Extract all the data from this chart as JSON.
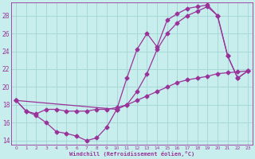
{
  "xlabel": "Windchill (Refroidissement éolien,°C)",
  "ylabel": "",
  "xlim": [
    -0.5,
    23.5
  ],
  "ylim": [
    13.5,
    29.5
  ],
  "xticks": [
    0,
    1,
    2,
    3,
    4,
    5,
    6,
    7,
    8,
    9,
    10,
    11,
    12,
    13,
    14,
    15,
    16,
    17,
    18,
    19,
    20,
    21,
    22,
    23
  ],
  "yticks": [
    14,
    16,
    18,
    20,
    22,
    24,
    26,
    28
  ],
  "background_color": "#c8eded",
  "grid_color": "#a8d8d8",
  "line_color": "#993399",
  "line1_x": [
    0,
    1,
    2,
    3,
    4,
    5,
    6,
    7,
    8,
    9,
    10
  ],
  "line1_y": [
    18.5,
    17.3,
    16.8,
    16.0,
    15.0,
    14.8,
    14.5,
    14.0,
    14.3,
    15.5,
    17.5
  ],
  "line2_x": [
    0,
    1,
    2,
    3,
    4,
    5,
    6,
    7,
    8,
    9,
    10,
    11,
    12,
    13,
    14,
    15,
    16,
    17,
    18,
    19,
    20,
    21,
    22,
    23
  ],
  "line2_y": [
    18.5,
    17.3,
    17.0,
    17.5,
    17.5,
    17.3,
    17.3,
    17.3,
    17.5,
    17.5,
    17.7,
    18.0,
    18.5,
    19.0,
    19.5,
    20.0,
    20.5,
    20.8,
    21.0,
    21.2,
    21.5,
    21.6,
    21.7,
    21.8
  ],
  "line3_x": [
    0,
    10,
    11,
    12,
    13,
    14,
    15,
    16,
    17,
    18,
    19,
    20,
    21,
    22,
    23
  ],
  "line3_y": [
    18.5,
    17.5,
    21.0,
    24.2,
    26.0,
    24.5,
    27.5,
    28.2,
    28.8,
    29.0,
    29.2,
    28.0,
    23.5,
    21.0,
    21.8
  ],
  "line4_x": [
    10,
    11,
    12,
    13,
    14,
    15,
    16,
    17,
    18,
    19,
    20,
    21,
    22,
    23
  ],
  "line4_y": [
    17.5,
    18.0,
    19.5,
    21.5,
    24.2,
    26.0,
    27.2,
    28.0,
    28.5,
    29.0,
    28.0,
    23.5,
    21.0,
    21.8
  ],
  "marker": "D",
  "markersize": 2.5,
  "linewidth": 0.9
}
